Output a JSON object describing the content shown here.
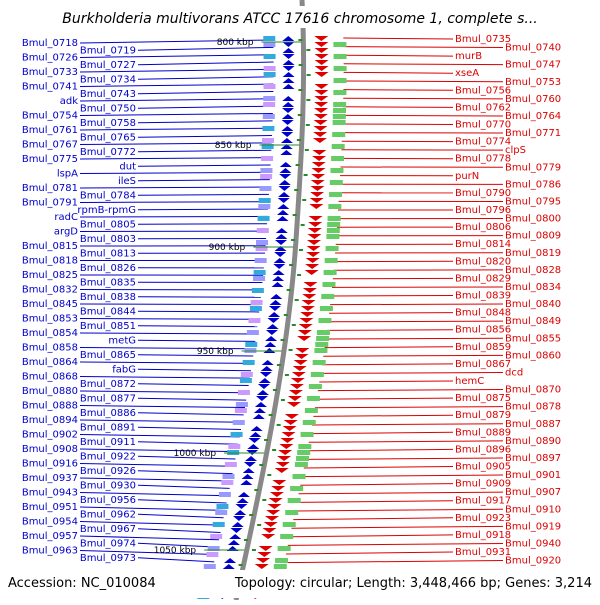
{
  "title": "Burkholderia multivorans ATCC 17616 chromosome 1, complete s...",
  "accession_text": "Accession: NC_010084",
  "summary_text": "Topology: circular; Length: 3,448,466 bp; Genes: 3,214",
  "colors": {
    "left_labels": "#0000cc",
    "right_labels": "#dd0000",
    "backbone": "#888888",
    "ticks": "#2a8a2a"
  },
  "scale_ticks": [
    "800 kbp",
    "850 kbp",
    "900 kbp",
    "950 kbp",
    "1000 kbp",
    "1050 kbp"
  ],
  "left_labels": [
    "Bmul_0718",
    "Bmul_0719",
    "Bmul_0726",
    "Bmul_0727",
    "Bmul_0733",
    "Bmul_0734",
    "Bmul_0741",
    "Bmul_0743",
    "adk",
    "Bmul_0750",
    "Bmul_0754",
    "Bmul_0758",
    "Bmul_0761",
    "Bmul_0765",
    "Bmul_0767",
    "Bmul_0772",
    "Bmul_0775",
    "dut",
    "lspA",
    "ileS",
    "Bmul_0781",
    "Bmul_0784",
    "Bmul_0791",
    "rpmB-rpmG",
    "radC",
    "Bmul_0805",
    "argD",
    "Bmul_0803",
    "Bmul_0815",
    "Bmul_0813",
    "Bmul_0818",
    "Bmul_0826",
    "Bmul_0825",
    "Bmul_0835",
    "Bmul_0832",
    "Bmul_0838",
    "Bmul_0845",
    "Bmul_0844",
    "Bmul_0853",
    "Bmul_0851",
    "Bmul_0854",
    "metG",
    "Bmul_0858",
    "Bmul_0865",
    "Bmul_0864",
    "fabG",
    "Bmul_0868",
    "Bmul_0872",
    "Bmul_0880",
    "Bmul_0877",
    "Bmul_0888",
    "Bmul_0886",
    "Bmul_0894",
    "Bmul_0891",
    "Bmul_0902",
    "Bmul_0911",
    "Bmul_0908",
    "Bmul_0922",
    "Bmul_0916",
    "Bmul_0926",
    "Bmul_0937",
    "Bmul_0930",
    "Bmul_0943",
    "Bmul_0956",
    "Bmul_0951",
    "Bmul_0962",
    "Bmul_0954",
    "Bmul_0967",
    "Bmul_0957",
    "Bmul_0974",
    "Bmul_0963",
    "Bmul_0973"
  ],
  "right_labels": [
    "Bmul_0735",
    "Bmul_0740",
    "murB",
    "Bmul_0747",
    "xseA",
    "Bmul_0753",
    "Bmul_0756",
    "Bmul_0760",
    "Bmul_0762",
    "Bmul_0764",
    "Bmul_0770",
    "Bmul_0771",
    "Bmul_0774",
    "clpS",
    "Bmul_0778",
    "Bmul_0779",
    "purN",
    "Bmul_0786",
    "Bmul_0790",
    "Bmul_0795",
    "Bmul_0796",
    "Bmul_0800",
    "Bmul_0806",
    "Bmul_0809",
    "Bmul_0814",
    "Bmul_0819",
    "Bmul_0820",
    "Bmul_0828",
    "Bmul_0829",
    "Bmul_0834",
    "Bmul_0839",
    "Bmul_0840",
    "Bmul_0848",
    "Bmul_0849",
    "Bmul_0856",
    "Bmul_0855",
    "Bmul_0859",
    "Bmul_0860",
    "Bmul_0867",
    "dcd",
    "hemC",
    "Bmul_0870",
    "Bmul_0875",
    "Bmul_0878",
    "Bmul_0879",
    "Bmul_0887",
    "Bmul_0889",
    "Bmul_0890",
    "Bmul_0896",
    "Bmul_0897",
    "Bmul_0905",
    "Bmul_0901",
    "Bmul_0909",
    "Bmul_0907",
    "Bmul_0917",
    "Bmul_0910",
    "Bmul_0923",
    "Bmul_0919",
    "Bmul_0918",
    "Bmul_0940",
    "Bmul_0931",
    "Bmul_0920"
  ]
}
